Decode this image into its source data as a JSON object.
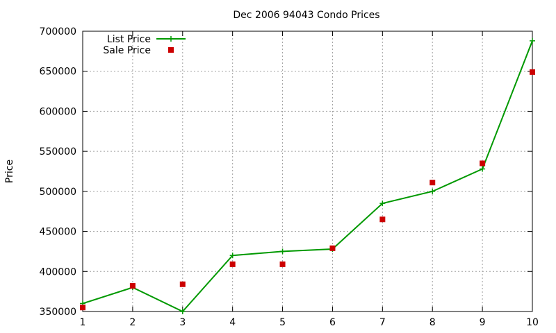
{
  "chart_data": {
    "type": "line",
    "title": "Dec 2006 94043 Condo Prices",
    "xlabel": "",
    "ylabel": "Price",
    "xlim": [
      1,
      10
    ],
    "ylim": [
      350000,
      700000
    ],
    "x_ticks": [
      1,
      2,
      3,
      4,
      5,
      6,
      7,
      8,
      9,
      10
    ],
    "y_ticks": [
      350000,
      400000,
      450000,
      500000,
      550000,
      600000,
      650000,
      700000
    ],
    "grid": true,
    "legend_position": "top-left",
    "x": [
      1,
      2,
      3,
      4,
      5,
      6,
      7,
      8,
      9,
      10
    ],
    "series": [
      {
        "name": "List Price",
        "style": "line-with-plus-markers",
        "color": "#009900",
        "values": [
          360000,
          380000,
          350000,
          420000,
          425000,
          428000,
          485000,
          500000,
          528000,
          688000
        ]
      },
      {
        "name": "Sale Price",
        "style": "square-markers",
        "color": "#cc0000",
        "values": [
          355000,
          382000,
          384000,
          409000,
          409000,
          429000,
          465000,
          511000,
          535000,
          649000
        ]
      }
    ]
  }
}
